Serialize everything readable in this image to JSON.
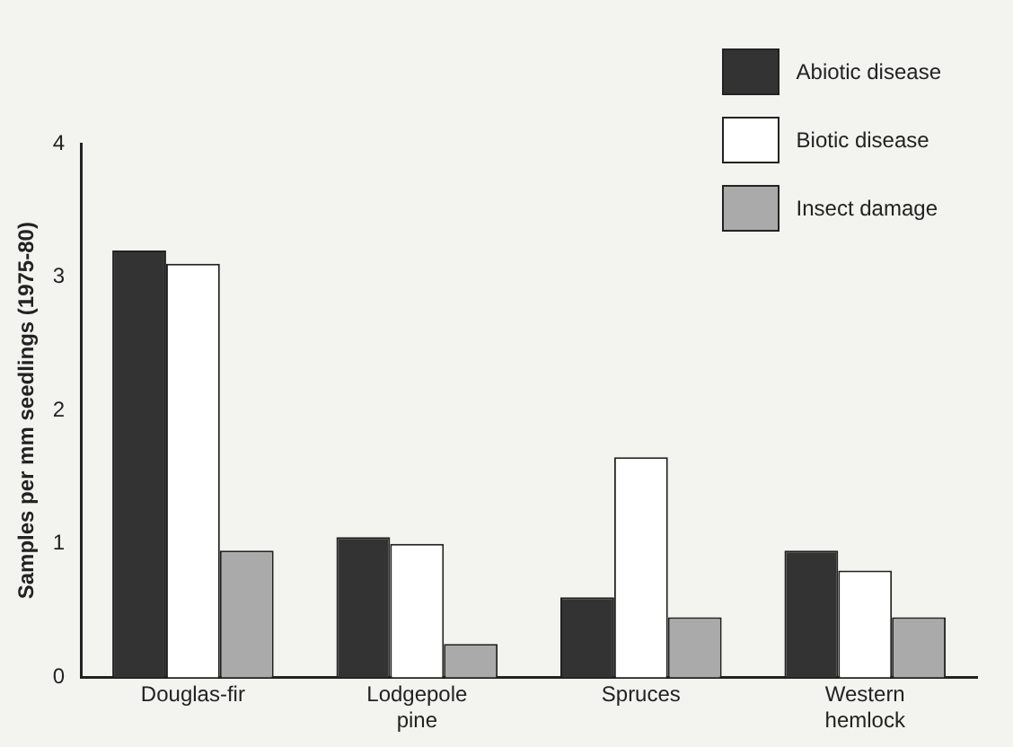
{
  "chart_data": {
    "type": "bar",
    "ylabel": "Samples per mm seedlings (1975-80)",
    "categories": [
      "Douglas-fir",
      "Lodgepole pine",
      "Spruces",
      "Western hemlock"
    ],
    "series": [
      {
        "name": "Abiotic disease",
        "color": "#333333",
        "values": [
          3.2,
          1.05,
          0.6,
          0.95
        ]
      },
      {
        "name": "Biotic disease",
        "color": "#ffffff",
        "values": [
          3.1,
          1.0,
          1.65,
          0.8
        ]
      },
      {
        "name": "Insect damage",
        "color": "#aaaaaa",
        "values": [
          0.95,
          0.25,
          0.45,
          0.45
        ]
      }
    ],
    "ylim": [
      0,
      4
    ],
    "yticks": [
      0,
      1,
      2,
      3,
      4
    ],
    "grid": false,
    "legend": "top right"
  }
}
